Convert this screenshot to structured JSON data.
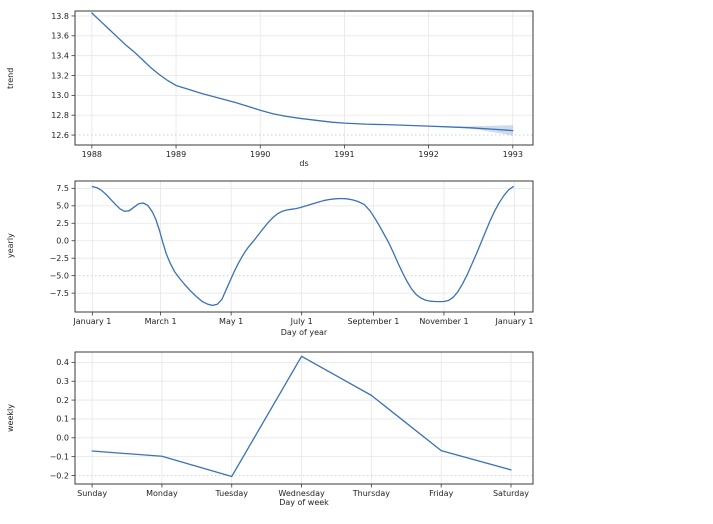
{
  "figure": {
    "line_color": "#3b71b8",
    "band_color": "#3b71b8",
    "band_opacity": 0.25,
    "spine_color": "#3a3a3a",
    "grid_color": "#e6e6e6",
    "grid_dotted_color": "#c9c9c9",
    "text_color": "#1f1f1f"
  },
  "chart_data": [
    {
      "type": "line",
      "name": "trend",
      "title": "",
      "xlabel": "ds",
      "ylabel": "trend",
      "xlim": [
        1987.8,
        1993.24
      ],
      "ylim": [
        12.5,
        13.85
      ],
      "grid": true,
      "xticks": [
        {
          "v": 1988,
          "label": "1988"
        },
        {
          "v": 1989,
          "label": "1989"
        },
        {
          "v": 1990,
          "label": "1990"
        },
        {
          "v": 1991,
          "label": "1991"
        },
        {
          "v": 1992,
          "label": "1992"
        },
        {
          "v": 1993,
          "label": "1993"
        }
      ],
      "yticks": [
        {
          "v": 12.6,
          "label": "12.6",
          "dotted": true
        },
        {
          "v": 12.8,
          "label": "12.8"
        },
        {
          "v": 13.0,
          "label": "13.0"
        },
        {
          "v": 13.2,
          "label": "13.2"
        },
        {
          "v": 13.4,
          "label": "13.4"
        },
        {
          "v": 13.6,
          "label": "13.6"
        },
        {
          "v": 13.8,
          "label": "13.8"
        }
      ],
      "series": [
        {
          "name": "trend",
          "x": [
            1988.0,
            1988.1,
            1988.2,
            1988.3,
            1988.4,
            1988.5,
            1988.6,
            1988.7,
            1988.8,
            1988.9,
            1989.0,
            1989.15,
            1989.3,
            1989.5,
            1989.7,
            1989.85,
            1990.0,
            1990.15,
            1990.3,
            1990.5,
            1990.7,
            1990.85,
            1991.0,
            1991.25,
            1991.5,
            1991.75,
            1992.0,
            1992.25,
            1992.5,
            1992.75,
            1993.0
          ],
          "y": [
            13.83,
            13.75,
            13.67,
            13.59,
            13.51,
            13.44,
            13.36,
            13.28,
            13.21,
            13.15,
            13.1,
            13.06,
            13.02,
            12.975,
            12.93,
            12.89,
            12.85,
            12.815,
            12.79,
            12.765,
            12.745,
            12.73,
            12.72,
            12.71,
            12.705,
            12.698,
            12.69,
            12.682,
            12.673,
            12.66,
            12.645
          ]
        }
      ],
      "band": {
        "x": [
          1992.2,
          1992.4,
          1992.6,
          1992.8,
          1993.0
        ],
        "upper": [
          12.686,
          12.687,
          12.69,
          12.695,
          12.7
        ],
        "lower": [
          12.683,
          12.672,
          12.654,
          12.625,
          12.595
        ]
      }
    },
    {
      "type": "line",
      "name": "yearly",
      "title": "",
      "xlabel": "Day of year",
      "ylabel": "yearly",
      "xlim": [
        -15,
        381
      ],
      "ylim": [
        -10.2,
        8.55
      ],
      "grid": true,
      "xticks": [
        {
          "v": 0,
          "label": "January 1"
        },
        {
          "v": 59,
          "label": "March 1"
        },
        {
          "v": 120,
          "label": "May 1"
        },
        {
          "v": 181,
          "label": "July 1"
        },
        {
          "v": 243,
          "label": "September 1"
        },
        {
          "v": 304,
          "label": "November 1"
        },
        {
          "v": 365,
          "label": "January 1"
        }
      ],
      "yticks": [
        {
          "v": -7.5,
          "label": "−7.5"
        },
        {
          "v": -5.0,
          "label": "−5.0",
          "dotted": true
        },
        {
          "v": -2.5,
          "label": "−2.5"
        },
        {
          "v": 0.0,
          "label": "0.0"
        },
        {
          "v": 2.5,
          "label": "2.5"
        },
        {
          "v": 5.0,
          "label": "5.0"
        },
        {
          "v": 7.5,
          "label": "7.5"
        }
      ],
      "series": [
        {
          "name": "yearly",
          "x": [
            0,
            4,
            8,
            12,
            16,
            20,
            24,
            28,
            32,
            36,
            40,
            44,
            48,
            52,
            55,
            58,
            61,
            64,
            67,
            71,
            75,
            80,
            85,
            90,
            95,
            100,
            104,
            108,
            112,
            116,
            120,
            123,
            126,
            129,
            132,
            135,
            138,
            141,
            144,
            148,
            152,
            156,
            160,
            164,
            168,
            172,
            176,
            180,
            185,
            190,
            195,
            200,
            205,
            210,
            215,
            220,
            225,
            230,
            235,
            240,
            244,
            248,
            252,
            256,
            260,
            264,
            268,
            272,
            276,
            280,
            284,
            288,
            292,
            296,
            300,
            304,
            308,
            312,
            316,
            320,
            324,
            328,
            332,
            336,
            340,
            344,
            348,
            352,
            356,
            360,
            364
          ],
          "y": [
            7.75,
            7.6,
            7.2,
            6.6,
            5.9,
            5.2,
            4.55,
            4.2,
            4.3,
            4.8,
            5.3,
            5.4,
            5.05,
            4.1,
            3.0,
            1.5,
            -0.3,
            -1.9,
            -3.1,
            -4.4,
            -5.3,
            -6.3,
            -7.2,
            -8.0,
            -8.7,
            -9.1,
            -9.25,
            -9.1,
            -8.4,
            -6.9,
            -5.4,
            -4.3,
            -3.3,
            -2.4,
            -1.6,
            -0.9,
            -0.3,
            0.3,
            0.95,
            1.8,
            2.6,
            3.3,
            3.85,
            4.2,
            4.4,
            4.5,
            4.6,
            4.75,
            5.0,
            5.25,
            5.5,
            5.75,
            5.9,
            6.0,
            6.05,
            6.0,
            5.85,
            5.6,
            5.2,
            4.3,
            3.3,
            2.2,
            1.0,
            -0.2,
            -1.6,
            -3.1,
            -4.5,
            -5.8,
            -6.9,
            -7.7,
            -8.2,
            -8.5,
            -8.65,
            -8.7,
            -8.72,
            -8.7,
            -8.55,
            -8.1,
            -7.3,
            -6.2,
            -4.9,
            -3.4,
            -1.9,
            -0.3,
            1.3,
            2.9,
            4.3,
            5.5,
            6.5,
            7.3,
            7.75
          ]
        }
      ]
    },
    {
      "type": "line",
      "name": "weekly",
      "title": "",
      "xlabel": "Day of week",
      "ylabel": "weekly",
      "xlim": [
        -0.245,
        6.315
      ],
      "ylim": [
        -0.245,
        0.455
      ],
      "grid": true,
      "xticks": [
        {
          "v": 0,
          "label": "Sunday"
        },
        {
          "v": 1,
          "label": "Monday"
        },
        {
          "v": 2,
          "label": "Tuesday"
        },
        {
          "v": 3,
          "label": "Wednesday"
        },
        {
          "v": 4,
          "label": "Thursday"
        },
        {
          "v": 5,
          "label": "Friday"
        },
        {
          "v": 6,
          "label": "Saturday"
        }
      ],
      "yticks": [
        {
          "v": -0.2,
          "label": "−0.2",
          "dotted": true
        },
        {
          "v": -0.1,
          "label": "−0.1"
        },
        {
          "v": 0.0,
          "label": "0.0"
        },
        {
          "v": 0.1,
          "label": "0.1"
        },
        {
          "v": 0.2,
          "label": "0.2"
        },
        {
          "v": 0.3,
          "label": "0.3"
        },
        {
          "v": 0.4,
          "label": "0.4"
        }
      ],
      "series": [
        {
          "name": "weekly",
          "x": [
            0,
            1,
            2,
            3,
            4,
            5,
            6
          ],
          "y": [
            -0.07,
            -0.098,
            -0.205,
            0.432,
            0.225,
            -0.068,
            -0.17
          ]
        }
      ]
    }
  ]
}
